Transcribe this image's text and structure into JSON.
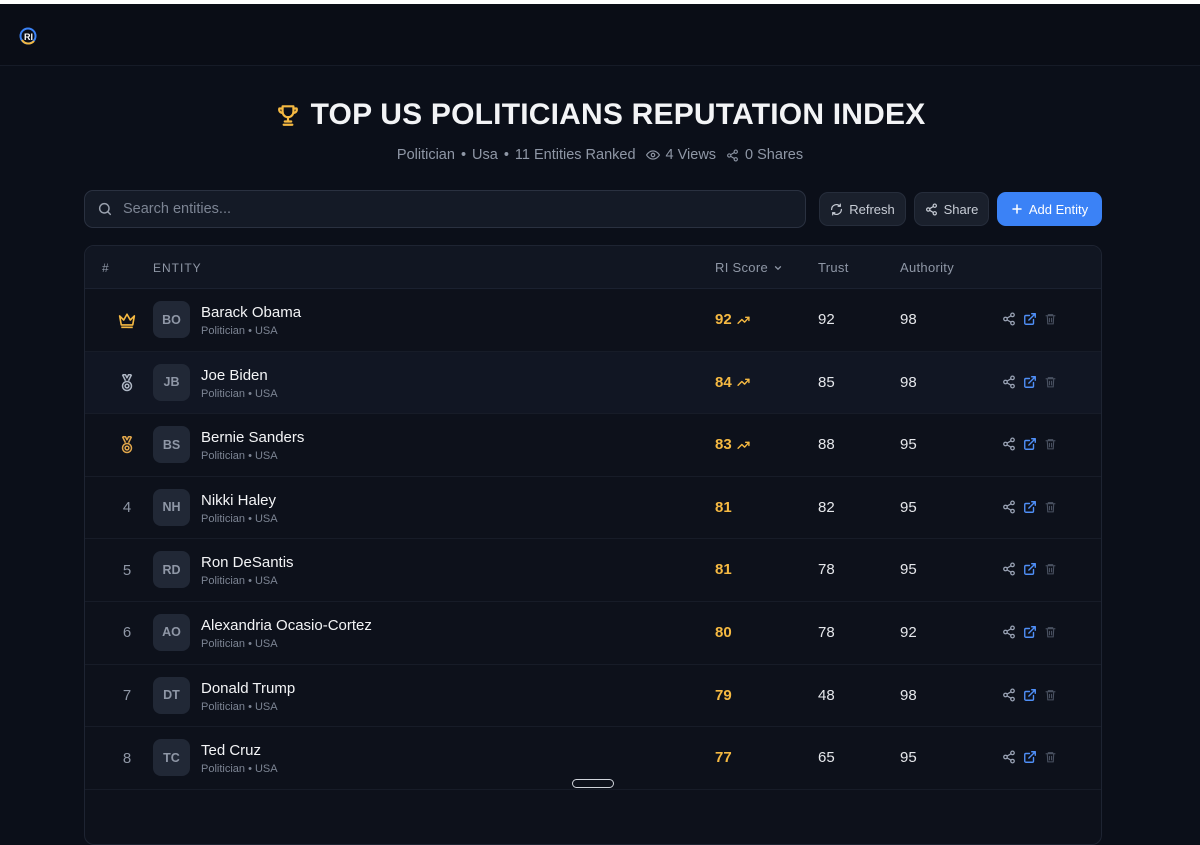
{
  "header": {
    "title": "TOP US POLITICIANS REPUTATION INDEX",
    "category": "Politician",
    "region": "Usa",
    "ranked": "11 Entities Ranked",
    "views": "4 Views",
    "shares": "0 Shares"
  },
  "search": {
    "placeholder": "Search entities..."
  },
  "toolbar": {
    "refresh_label": "Refresh",
    "share_label": "Share",
    "add_label": "Add Entity"
  },
  "table": {
    "columns": {
      "rank": "#",
      "entity": "ENTITY",
      "ri": "RI Score",
      "trust": "Trust",
      "authority": "Authority"
    },
    "rows": [
      {
        "rank": "",
        "rank_icon": "crown-icon",
        "initials": "BO",
        "name": "Barack Obama",
        "meta": "Politician • USA",
        "ri": "92",
        "trend": true,
        "trust": "92",
        "authority": "98"
      },
      {
        "rank": "",
        "rank_icon": "silver-medal-icon",
        "initials": "JB",
        "name": "Joe Biden",
        "meta": "Politician • USA",
        "ri": "84",
        "trend": true,
        "trust": "85",
        "authority": "98"
      },
      {
        "rank": "",
        "rank_icon": "bronze-medal-icon",
        "initials": "BS",
        "name": "Bernie Sanders",
        "meta": "Politician • USA",
        "ri": "83",
        "trend": true,
        "trust": "88",
        "authority": "95"
      },
      {
        "rank": "4",
        "initials": "NH",
        "name": "Nikki Haley",
        "meta": "Politician • USA",
        "ri": "81",
        "trend": false,
        "trust": "82",
        "authority": "95"
      },
      {
        "rank": "5",
        "initials": "RD",
        "name": "Ron DeSantis",
        "meta": "Politician • USA",
        "ri": "81",
        "trend": false,
        "trust": "78",
        "authority": "95"
      },
      {
        "rank": "6",
        "initials": "AO",
        "name": "Alexandria Ocasio-Cortez",
        "meta": "Politician • USA",
        "ri": "80",
        "trend": false,
        "trust": "78",
        "authority": "92"
      },
      {
        "rank": "7",
        "initials": "DT",
        "name": "Donald Trump",
        "meta": "Politician • USA",
        "ri": "79",
        "trend": false,
        "trust": "48",
        "authority": "98"
      },
      {
        "rank": "8",
        "initials": "TC",
        "name": "Ted Cruz",
        "meta": "Politician • USA",
        "ri": "77",
        "trend": false,
        "trust": "65",
        "authority": "95"
      }
    ]
  },
  "colors": {
    "accent": "#3b82f6",
    "score": "#f5b942",
    "gold": "#f5b942",
    "silver": "#aeb6c4",
    "bronze": "#e0a64b"
  }
}
